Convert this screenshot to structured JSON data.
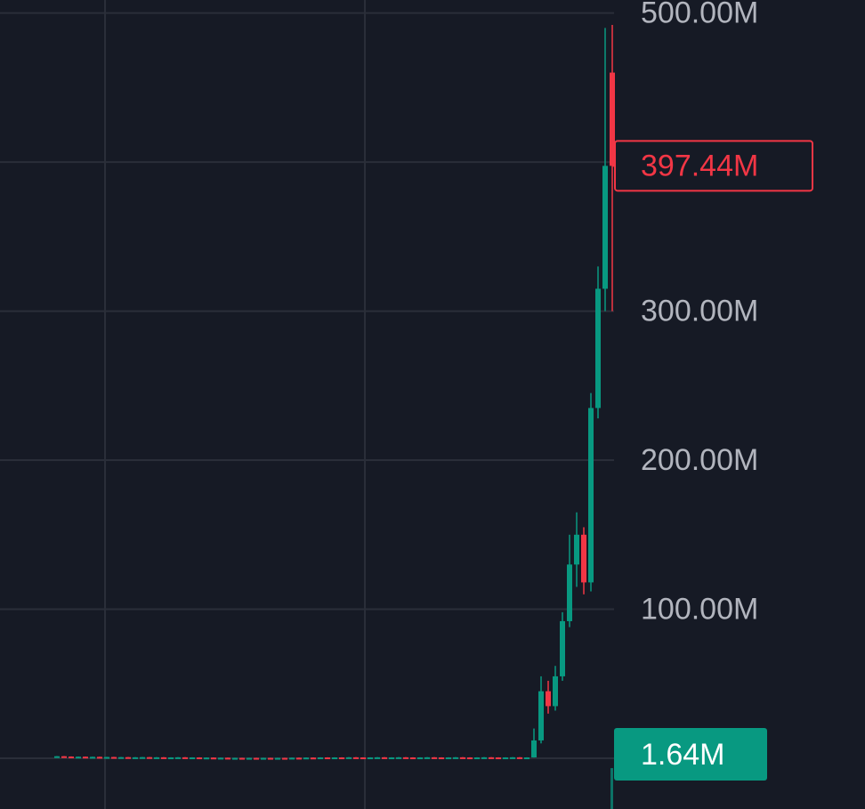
{
  "chart_data": {
    "type": "candlestick",
    "ylim": [
      -34,
      508.7
    ],
    "yticks": [
      {
        "value": 100,
        "label": "100.00M"
      },
      {
        "value": 200,
        "label": "200.00M"
      },
      {
        "value": 300,
        "label": "300.00M"
      },
      {
        "value": 500,
        "label": "500.00M"
      }
    ],
    "ygrid": [
      0,
      400
    ],
    "grid": true,
    "up_color": "#089981",
    "down_color": "#f23645",
    "open": [
      1.0,
      1.4,
      1.2,
      1.0,
      1.1,
      0.9,
      1.0,
      0.8,
      0.9,
      0.7,
      0.8,
      0.6,
      0.7,
      0.8,
      0.6,
      0.7,
      0.5,
      0.6,
      0.7,
      0.5,
      0.6,
      0.4,
      0.5,
      0.3,
      0.4,
      0.2,
      0.3,
      0.2,
      0.3,
      0.2,
      0.3,
      0.2,
      0.3,
      0.2,
      0.4,
      0.3,
      0.5,
      0.4,
      0.6,
      0.5,
      0.6,
      0.5,
      0.7,
      0.6,
      0.5,
      0.6,
      0.7,
      0.5,
      0.6,
      0.7,
      0.6,
      0.5,
      0.6,
      0.7,
      0.6,
      0.5,
      0.6,
      0.7,
      0.6,
      0.5,
      0.6,
      0.7,
      0.6,
      0.5,
      0.6,
      0.7,
      0.6,
      0.6,
      12,
      45,
      35,
      55,
      92,
      130,
      150,
      118,
      235,
      315,
      460
    ],
    "high": [
      1.5,
      1.5,
      1.3,
      1.2,
      1.2,
      1.1,
      1.1,
      1.0,
      1.0,
      0.9,
      0.9,
      0.8,
      0.9,
      0.9,
      0.8,
      0.8,
      0.7,
      0.8,
      0.8,
      0.7,
      0.7,
      0.6,
      0.6,
      0.5,
      0.5,
      0.4,
      0.4,
      0.4,
      0.4,
      0.4,
      0.4,
      0.4,
      0.4,
      0.5,
      0.5,
      0.6,
      0.6,
      0.7,
      0.7,
      0.7,
      0.7,
      0.8,
      0.8,
      0.7,
      0.7,
      0.8,
      0.8,
      0.7,
      0.8,
      0.8,
      0.7,
      0.7,
      0.8,
      0.8,
      0.7,
      0.7,
      0.8,
      0.8,
      0.7,
      0.7,
      0.8,
      0.8,
      0.7,
      0.7,
      0.8,
      0.8,
      0.7,
      20,
      55,
      52,
      62,
      98,
      150,
      165,
      155,
      245,
      330,
      490,
      492
    ],
    "low": [
      0.9,
      1.1,
      0.9,
      0.9,
      0.8,
      0.8,
      0.7,
      0.7,
      0.6,
      0.6,
      0.5,
      0.5,
      0.6,
      0.5,
      0.5,
      0.4,
      0.4,
      0.5,
      0.4,
      0.4,
      0.3,
      0.3,
      0.2,
      0.2,
      0.1,
      0.1,
      0.1,
      0.1,
      0.1,
      0.1,
      0.1,
      0.1,
      0.1,
      0.1,
      0.2,
      0.2,
      0.3,
      0.3,
      0.4,
      0.4,
      0.4,
      0.4,
      0.5,
      0.4,
      0.4,
      0.5,
      0.4,
      0.4,
      0.5,
      0.5,
      0.4,
      0.4,
      0.5,
      0.5,
      0.4,
      0.4,
      0.5,
      0.5,
      0.4,
      0.4,
      0.5,
      0.5,
      0.4,
      0.4,
      0.5,
      0.5,
      0.5,
      0.5,
      10,
      30,
      32,
      52,
      88,
      115,
      110,
      112,
      228,
      300,
      300
    ],
    "close": [
      1.4,
      1.2,
      1.0,
      1.1,
      0.9,
      1.0,
      0.8,
      0.9,
      0.7,
      0.8,
      0.6,
      0.7,
      0.8,
      0.6,
      0.7,
      0.5,
      0.6,
      0.7,
      0.5,
      0.6,
      0.4,
      0.5,
      0.3,
      0.4,
      0.2,
      0.3,
      0.2,
      0.3,
      0.2,
      0.3,
      0.2,
      0.3,
      0.2,
      0.4,
      0.3,
      0.5,
      0.4,
      0.6,
      0.5,
      0.6,
      0.5,
      0.7,
      0.6,
      0.5,
      0.6,
      0.7,
      0.5,
      0.6,
      0.7,
      0.6,
      0.5,
      0.6,
      0.7,
      0.6,
      0.5,
      0.6,
      0.7,
      0.6,
      0.5,
      0.6,
      0.7,
      0.6,
      0.5,
      0.6,
      0.7,
      0.6,
      0.6,
      12,
      45,
      35,
      55,
      92,
      130,
      150,
      118,
      235,
      315,
      397.44,
      397.44
    ],
    "price_label": "397.44M",
    "volume_label": {
      "value": 1.64,
      "label": "1.64M"
    }
  }
}
